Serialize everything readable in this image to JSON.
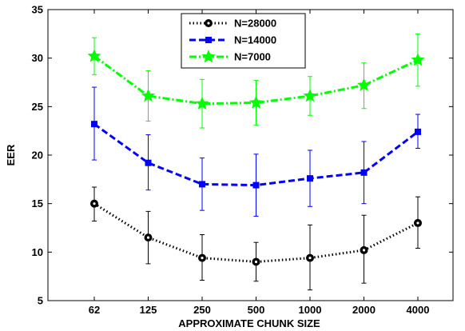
{
  "chart_data": {
    "type": "line",
    "xlabel": "APPROXIMATE CHUNK SIZE",
    "ylabel": "EER",
    "categories": [
      "62",
      "125",
      "250",
      "500",
      "1000",
      "2000",
      "4000"
    ],
    "ylim": [
      5,
      35
    ],
    "yticks": [
      5,
      10,
      15,
      20,
      25,
      30,
      35
    ],
    "grid": false,
    "legend_position": "top-center",
    "series": [
      {
        "name": "N=28000",
        "color": "#000000",
        "line_style": "dotted",
        "marker": "circle",
        "values": [
          15.0,
          11.5,
          9.4,
          9.0,
          9.4,
          10.2,
          13.0
        ],
        "err_low": [
          13.2,
          8.8,
          7.1,
          7.0,
          6.1,
          6.8,
          10.4
        ],
        "err_high": [
          16.7,
          14.2,
          11.8,
          11.0,
          12.8,
          13.8,
          15.7
        ]
      },
      {
        "name": "N=14000",
        "color": "#0000ff",
        "line_style": "dashed",
        "marker": "square",
        "values": [
          23.2,
          19.2,
          17.0,
          16.9,
          17.6,
          18.2,
          22.4
        ],
        "err_low": [
          19.5,
          16.4,
          14.3,
          13.7,
          14.7,
          15.0,
          20.7
        ],
        "err_high": [
          27.0,
          22.1,
          19.7,
          20.1,
          20.5,
          21.4,
          24.2
        ]
      },
      {
        "name": "N=7000",
        "color": "#00ff00",
        "line_style": "dashdot",
        "marker": "star",
        "values": [
          30.2,
          26.1,
          25.3,
          25.4,
          26.1,
          27.2,
          29.8
        ],
        "err_low": [
          28.3,
          23.5,
          22.8,
          23.1,
          24.1,
          24.8,
          27.1
        ],
        "err_high": [
          32.1,
          28.7,
          27.8,
          27.7,
          28.1,
          29.5,
          32.5
        ]
      }
    ]
  }
}
